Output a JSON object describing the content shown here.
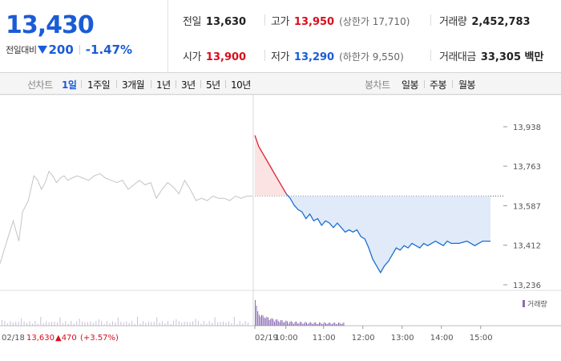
{
  "price": {
    "current": "13,430",
    "change_label": "전일대비",
    "change_amount": "200",
    "change_pct": "-1.47%"
  },
  "stats": {
    "prev_close": {
      "label": "전일",
      "value": "13,630"
    },
    "high": {
      "label": "고가",
      "value": "13,950",
      "sub": "(상한가 17,710)"
    },
    "volume": {
      "label": "거래량",
      "value": "2,452,783"
    },
    "open": {
      "label": "시가",
      "value": "13,900"
    },
    "low": {
      "label": "저가",
      "value": "13,290",
      "sub": "(하한가 9,550)"
    },
    "trade_amount": {
      "label": "거래대금",
      "value": "33,305 백만"
    }
  },
  "tabs": {
    "line_label": "선차트",
    "line_items": [
      "1일",
      "1주일",
      "3개월",
      "1년",
      "3년",
      "5년",
      "10년"
    ],
    "active_index": 0,
    "candle_label": "봉차트",
    "candle_items": [
      "일봉",
      "주봉",
      "월봉"
    ]
  },
  "chart_data": {
    "type": "line",
    "y_ticks": [
      "13,938",
      "13,763",
      "13,587",
      "13,412",
      "13,236"
    ],
    "ylim": [
      13236,
      13938
    ],
    "prev_close": 13630,
    "x_labels": [
      "02/19",
      "10:00",
      "11:00",
      "12:00",
      "13:00",
      "14:00",
      "15:00"
    ],
    "prev_day_label": {
      "date": "02/18",
      "close": "13,630",
      "change": "▲470",
      "pct": "(+3.57%)"
    },
    "volume_legend": "거래량",
    "series": [
      {
        "name": "",
        "color": "#c4c4c4",
        "x": [
          0,
          0.2,
          0.35,
          0.5,
          0.6,
          0.75,
          0.9,
          1,
          1.1,
          1.2,
          1.3,
          1.4,
          1.5,
          1.6,
          1.7,
          1.8,
          1.9,
          2.05,
          2.2,
          2.35,
          2.5,
          2.65,
          2.8,
          2.95,
          3.1,
          3.25,
          3.4,
          3.55,
          3.7,
          3.85,
          4,
          4.15,
          4.3,
          4.45,
          4.6,
          4.75,
          4.9,
          5.05,
          5.2,
          5.35,
          5.5,
          5.65,
          5.8,
          5.95,
          6.1,
          6.25,
          6.4,
          6.55,
          6.7
        ],
        "y": [
          13330,
          13440,
          13520,
          13430,
          13560,
          13610,
          13720,
          13700,
          13660,
          13690,
          13740,
          13720,
          13690,
          13710,
          13720,
          13700,
          13710,
          13720,
          13710,
          13700,
          13720,
          13730,
          13710,
          13700,
          13690,
          13700,
          13660,
          13680,
          13700,
          13680,
          13690,
          13620,
          13660,
          13690,
          13670,
          13640,
          13700,
          13660,
          13610,
          13620,
          13610,
          13630,
          13620,
          13620,
          13610,
          13630,
          13620,
          13630,
          13630
        ]
      },
      {
        "name": "",
        "color": "#1a6fd1",
        "x": [
          0,
          0.1,
          0.2,
          0.3,
          0.4,
          0.5,
          0.6,
          0.7,
          0.8,
          0.9,
          1,
          1.1,
          1.2,
          1.3,
          1.4,
          1.5,
          1.6,
          1.7,
          1.8,
          1.9,
          2,
          2.1,
          2.2,
          2.3,
          2.4,
          2.5,
          2.6,
          2.7,
          2.8,
          2.9,
          3,
          3.1,
          3.2,
          3.3,
          3.4,
          3.5,
          3.6,
          3.7,
          3.8,
          3.9,
          4,
          4.1,
          4.2,
          4.3,
          4.4,
          4.5,
          4.6,
          4.7,
          4.8,
          4.9,
          5,
          5.2,
          5.4,
          5.6,
          5.8,
          6
        ],
        "y": [
          13900,
          13850,
          13820,
          13790,
          13760,
          13730,
          13700,
          13670,
          13640,
          13620,
          13590,
          13570,
          13560,
          13530,
          13550,
          13520,
          13530,
          13500,
          13520,
          13510,
          13490,
          13510,
          13490,
          13470,
          13480,
          13470,
          13480,
          13450,
          13440,
          13400,
          13350,
          13320,
          13290,
          13320,
          13340,
          13370,
          13400,
          13390,
          13410,
          13400,
          13420,
          13410,
          13400,
          13420,
          13410,
          13420,
          13430,
          13420,
          13410,
          13430,
          13420,
          13420,
          13430,
          13410,
          13430,
          13430
        ]
      }
    ]
  }
}
